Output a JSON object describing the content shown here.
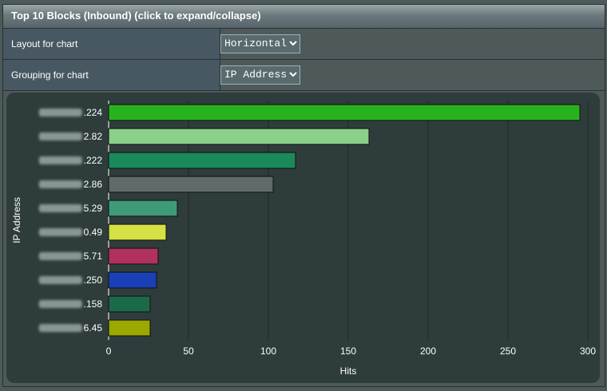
{
  "header": {
    "title": "Top 10 Blocks (Inbound) (click to expand/collapse)"
  },
  "settings": {
    "layout_label": "Layout for chart",
    "layout_value": "Horizontal",
    "grouping_label": "Grouping for chart",
    "grouping_value": "IP Address"
  },
  "chart_data": {
    "type": "bar",
    "orientation": "horizontal",
    "categories": [
      ".224",
      "2.82",
      ".222",
      "2.86",
      "5.29",
      "0.49",
      "5.71",
      ".250",
      ".158",
      "6.45"
    ],
    "values": [
      295,
      163,
      117,
      103,
      43,
      36,
      31,
      30,
      26,
      26
    ],
    "colors": [
      "#28b21f",
      "#8ad08a",
      "#1a8a5a",
      "#5f6a6a",
      "#3f9a7a",
      "#d4e044",
      "#b03060",
      "#1a40b8",
      "#1a6a4a",
      "#9aa800"
    ],
    "xlabel": "Hits",
    "ylabel": "IP Address",
    "xlim": [
      0,
      300
    ],
    "xticks": [
      0,
      50,
      100,
      150,
      200,
      250,
      300
    ],
    "grid": "vertical"
  }
}
